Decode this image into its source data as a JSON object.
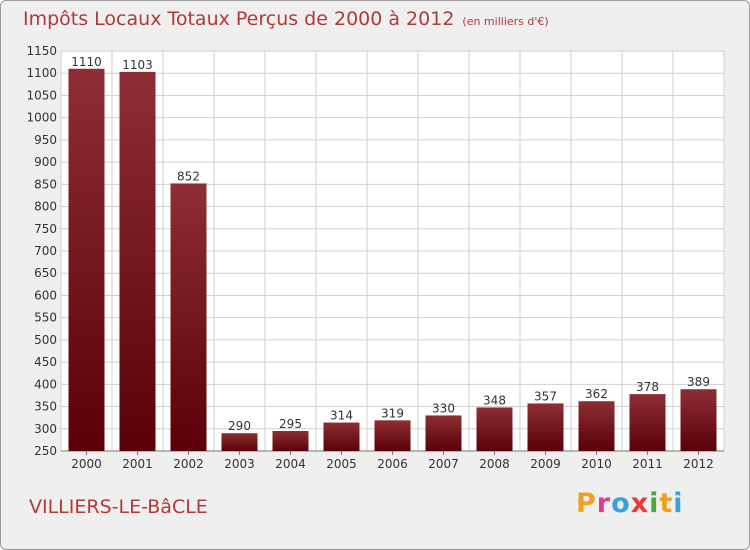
{
  "header": {
    "title": "Impôts Locaux Totaux Perçus de 2000 à 2012",
    "unit": "(en milliers d'€)"
  },
  "footer": {
    "commune": "VILLIERS-LE-BâCLE",
    "brand": "Proxiti",
    "brand_colors": [
      "#f0a020",
      "#e83a8a",
      "#3aa0e0",
      "#e83a3a",
      "#4aa83a",
      "#f0a020",
      "#3aa0e0"
    ]
  },
  "colors": {
    "bar_top": "#8e2e34",
    "bar_bottom": "#5a0008",
    "title": "#b03a3a",
    "background": "#efefef"
  },
  "chart_data": {
    "type": "bar",
    "title": "Impôts Locaux Totaux Perçus de 2000 à 2012",
    "xlabel": "",
    "ylabel": "",
    "categories": [
      "2000",
      "2001",
      "2002",
      "2003",
      "2004",
      "2005",
      "2006",
      "2007",
      "2008",
      "2009",
      "2010",
      "2011",
      "2012"
    ],
    "values": [
      1110,
      1103,
      852,
      290,
      295,
      314,
      319,
      330,
      348,
      357,
      362,
      378,
      389
    ],
    "value_labels": [
      "1110",
      "1103",
      "852",
      "290",
      "295",
      "314",
      "319",
      "330",
      "348",
      "357",
      "362",
      "378",
      "389"
    ],
    "ylim": [
      250,
      1150
    ],
    "yticks": [
      "250",
      "300",
      "350",
      "400",
      "450",
      "500",
      "550",
      "600",
      "650",
      "700",
      "750",
      "800",
      "850",
      "900",
      "950",
      "1000",
      "1050",
      "1100",
      "1150"
    ],
    "grid": true
  }
}
